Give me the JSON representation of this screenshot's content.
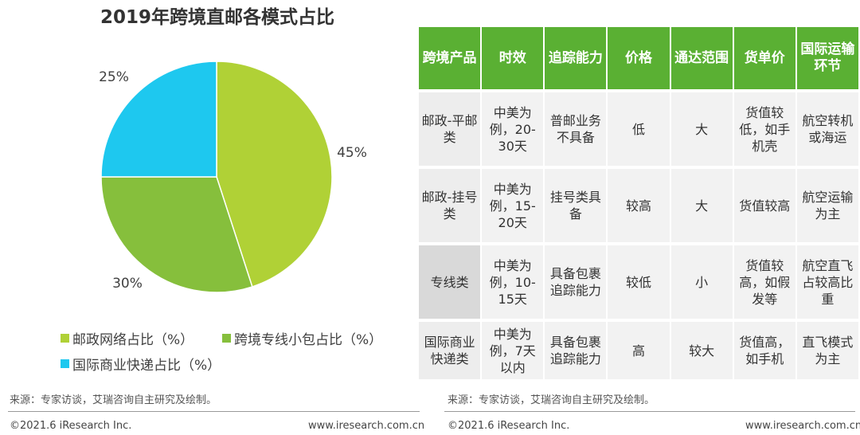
{
  "chart_data": {
    "type": "pie",
    "title": "2019年跨境直邮各模式占比",
    "slices": [
      {
        "name": "邮政网络占比（%）",
        "value": 45,
        "label": "45%",
        "color": "#b0d136"
      },
      {
        "name": "跨境专线小包占比（%）",
        "value": 30,
        "label": "30%",
        "color": "#86bf3c"
      },
      {
        "name": "国际商业快递占比（%）",
        "value": 25,
        "label": "25%",
        "color": "#1ec8ef"
      }
    ]
  },
  "table": {
    "headers": [
      "跨境产品",
      "时效",
      "追踪能力",
      "价格",
      "通达范围",
      "货单价",
      "国际运输环节"
    ],
    "rows": [
      [
        "邮政-平邮类",
        "中美为例，20-30天",
        "普邮业务不具备",
        "低",
        "大",
        "货值较低，如手机壳",
        "航空转机或海运"
      ],
      [
        "邮政-挂号类",
        "中美为例，15-20天",
        "挂号类具备",
        "较高",
        "大",
        "货值较高",
        "航空运输为主"
      ],
      [
        "专线类",
        "中美为例，10-15天",
        "具备包裹追踪能力",
        "较低",
        "小",
        "货值较高，如假发等",
        "航空直飞占较高比重"
      ],
      [
        "国际商业快递类",
        "中美为例，7天以内",
        "具备包裹追踪能力",
        "高",
        "较大",
        "货值高，如手机",
        "直飞模式为主"
      ]
    ]
  },
  "footer_left": {
    "source": "来源：专家访谈，艾瑞咨询自主研究及绘制。",
    "copyright": "©2021.6 iResearch Inc.",
    "url": "www.iresearch.com.cn"
  },
  "footer_right": {
    "source": "来源：专家访谈，艾瑞咨询自主研究及绘制。",
    "copyright": "©2021.6 iResearch Inc.",
    "url": "www.iresearch.com.cn"
  }
}
